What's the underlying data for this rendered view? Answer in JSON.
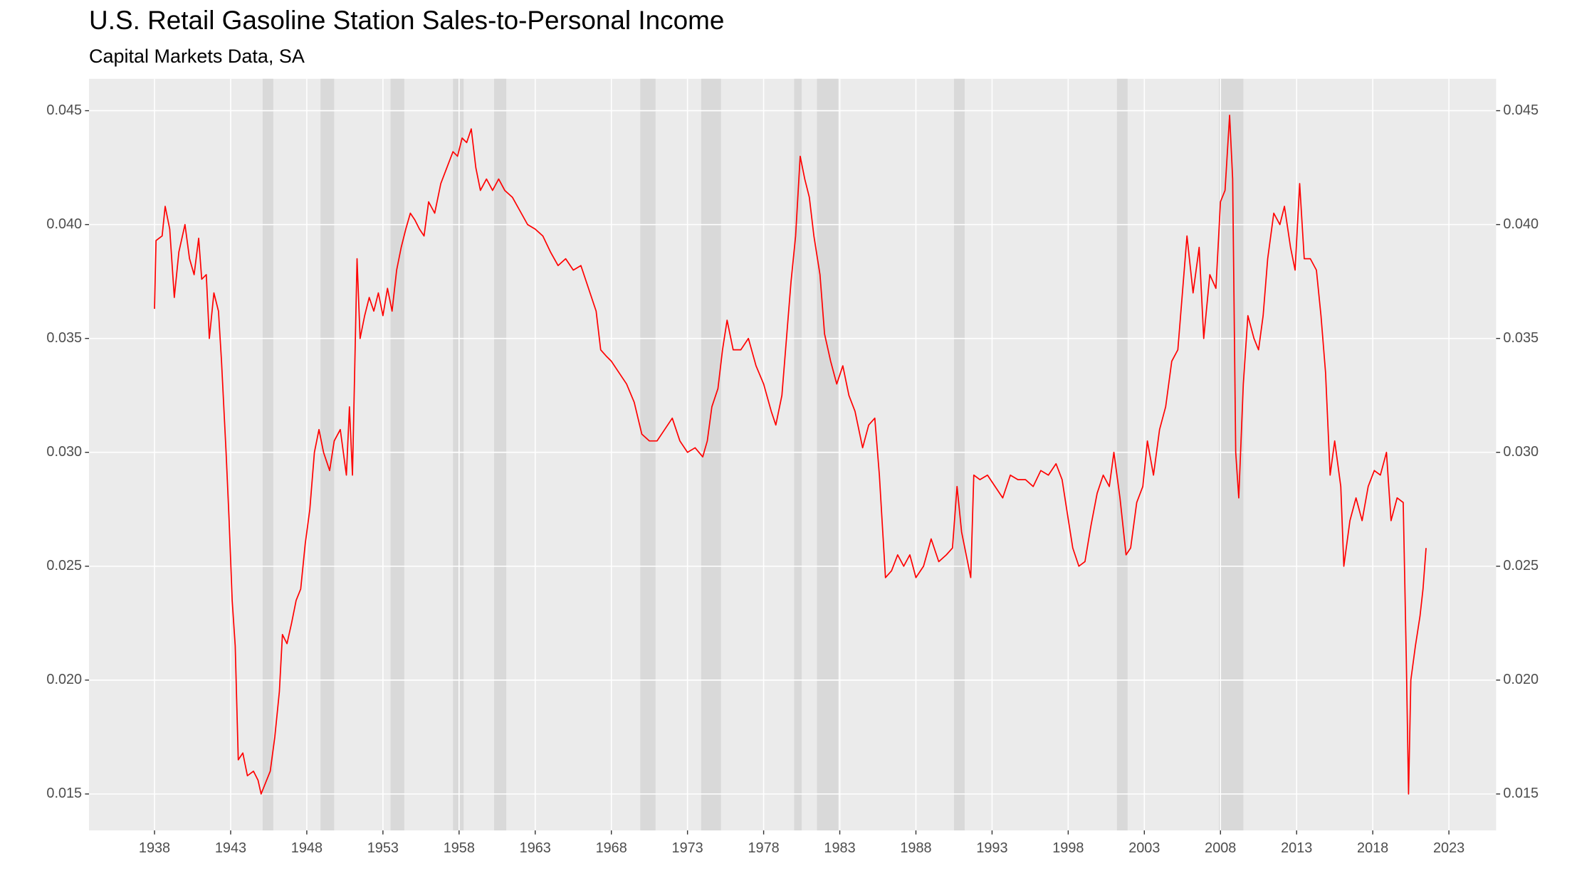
{
  "chart_data": {
    "type": "line",
    "title": "U.S. Retail Gasoline Station Sales-to-Personal Income",
    "subtitle": "Capital Markets Data, SA",
    "x": [
      1938.0,
      1938.1,
      1938.5,
      1938.7,
      1939.0,
      1939.3,
      1939.6,
      1940.0,
      1940.3,
      1940.6,
      1940.9,
      1941.1,
      1941.4,
      1941.6,
      1941.9,
      1942.2,
      1942.4,
      1942.7,
      1942.9,
      1943.1,
      1943.3,
      1943.5,
      1943.8,
      1944.1,
      1944.5,
      1944.8,
      1945.0,
      1945.3,
      1945.6,
      1945.9,
      1946.2,
      1946.4,
      1946.7,
      1947.0,
      1947.3,
      1947.6,
      1947.9,
      1948.2,
      1948.5,
      1948.8,
      1949.1,
      1949.5,
      1949.8,
      1950.2,
      1950.4,
      1950.6,
      1950.8,
      1951.0,
      1951.3,
      1951.5,
      1951.8,
      1952.1,
      1952.4,
      1952.7,
      1953.0,
      1953.3,
      1953.6,
      1953.9,
      1954.2,
      1954.5,
      1954.8,
      1955.1,
      1955.4,
      1955.7,
      1956.0,
      1956.4,
      1956.8,
      1957.2,
      1957.6,
      1957.9,
      1958.2,
      1958.5,
      1958.8,
      1959.1,
      1959.4,
      1959.8,
      1960.2,
      1960.6,
      1961.0,
      1961.5,
      1962.0,
      1962.5,
      1963.0,
      1963.5,
      1964.0,
      1964.5,
      1965.0,
      1965.5,
      1966.0,
      1966.5,
      1967.0,
      1967.3,
      1967.7,
      1968.0,
      1968.5,
      1969.0,
      1969.5,
      1970.0,
      1970.5,
      1971.0,
      1971.5,
      1972.0,
      1972.5,
      1973.0,
      1973.5,
      1974.0,
      1974.3,
      1974.6,
      1975.0,
      1975.3,
      1975.6,
      1976.0,
      1976.5,
      1977.0,
      1977.5,
      1978.0,
      1978.5,
      1978.8,
      1979.2,
      1979.5,
      1979.8,
      1980.1,
      1980.4,
      1980.7,
      1981.0,
      1981.3,
      1981.7,
      1982.0,
      1982.4,
      1982.8,
      1983.2,
      1983.6,
      1984.0,
      1984.5,
      1984.9,
      1985.3,
      1985.6,
      1986.0,
      1986.4,
      1986.8,
      1987.2,
      1987.6,
      1988.0,
      1988.5,
      1989.0,
      1989.5,
      1990.0,
      1990.4,
      1990.7,
      1991.0,
      1991.3,
      1991.6,
      1991.8,
      1992.2,
      1992.7,
      1993.2,
      1993.7,
      1994.2,
      1994.7,
      1995.2,
      1995.7,
      1996.2,
      1996.7,
      1997.2,
      1997.6,
      1997.9,
      1998.3,
      1998.7,
      1999.1,
      1999.5,
      1999.9,
      2000.3,
      2000.7,
      2001.0,
      2001.4,
      2001.8,
      2002.1,
      2002.5,
      2002.9,
      2003.2,
      2003.6,
      2004.0,
      2004.4,
      2004.8,
      2005.2,
      2005.5,
      2005.8,
      2006.2,
      2006.6,
      2006.9,
      2007.3,
      2007.7,
      2008.0,
      2008.3,
      2008.6,
      2008.8,
      2009.0,
      2009.2,
      2009.5,
      2009.8,
      2010.2,
      2010.5,
      2010.8,
      2011.1,
      2011.5,
      2011.9,
      2012.2,
      2012.6,
      2012.9,
      2013.2,
      2013.5,
      2013.9,
      2014.3,
      2014.6,
      2014.9,
      2015.2,
      2015.5,
      2015.9,
      2016.1,
      2016.5,
      2016.9,
      2017.3,
      2017.7,
      2018.1,
      2018.5,
      2018.9,
      2019.2,
      2019.6,
      2020.0,
      2020.2,
      2020.35,
      2020.5,
      2020.8,
      2021.1,
      2021.3,
      2021.5
    ],
    "series": [
      {
        "color": "#ff0000",
        "values": [
          0.0363,
          0.0393,
          0.0395,
          0.0408,
          0.0398,
          0.0368,
          0.0388,
          0.04,
          0.0385,
          0.0378,
          0.0394,
          0.0376,
          0.0378,
          0.035,
          0.037,
          0.0362,
          0.034,
          0.03,
          0.027,
          0.0235,
          0.0215,
          0.0165,
          0.0168,
          0.0158,
          0.016,
          0.0156,
          0.015,
          0.0155,
          0.016,
          0.0175,
          0.0195,
          0.022,
          0.0216,
          0.0225,
          0.0235,
          0.024,
          0.026,
          0.0275,
          0.03,
          0.031,
          0.03,
          0.0292,
          0.0305,
          0.031,
          0.03,
          0.029,
          0.032,
          0.029,
          0.0385,
          0.035,
          0.036,
          0.0368,
          0.0362,
          0.037,
          0.036,
          0.0372,
          0.0362,
          0.038,
          0.039,
          0.0398,
          0.0405,
          0.0402,
          0.0398,
          0.0395,
          0.041,
          0.0405,
          0.0418,
          0.0425,
          0.0432,
          0.043,
          0.0438,
          0.0436,
          0.0442,
          0.0425,
          0.0415,
          0.042,
          0.0415,
          0.042,
          0.0415,
          0.0412,
          0.0406,
          0.04,
          0.0398,
          0.0395,
          0.0388,
          0.0382,
          0.0385,
          0.038,
          0.0382,
          0.0372,
          0.0362,
          0.0345,
          0.0342,
          0.034,
          0.0335,
          0.033,
          0.0322,
          0.0308,
          0.0305,
          0.0305,
          0.031,
          0.0315,
          0.0305,
          0.03,
          0.0302,
          0.0298,
          0.0305,
          0.032,
          0.0328,
          0.0345,
          0.0358,
          0.0345,
          0.0345,
          0.035,
          0.0338,
          0.033,
          0.0318,
          0.0312,
          0.0325,
          0.035,
          0.0375,
          0.0395,
          0.043,
          0.042,
          0.0412,
          0.0395,
          0.0378,
          0.0352,
          0.034,
          0.033,
          0.0338,
          0.0325,
          0.0318,
          0.0302,
          0.0312,
          0.0315,
          0.029,
          0.0245,
          0.0248,
          0.0255,
          0.025,
          0.0255,
          0.0245,
          0.025,
          0.0262,
          0.0252,
          0.0255,
          0.0258,
          0.0285,
          0.0265,
          0.0255,
          0.0245,
          0.029,
          0.0288,
          0.029,
          0.0285,
          0.028,
          0.029,
          0.0288,
          0.0288,
          0.0285,
          0.0292,
          0.029,
          0.0295,
          0.0288,
          0.0275,
          0.0258,
          0.025,
          0.0252,
          0.0268,
          0.0282,
          0.029,
          0.0285,
          0.03,
          0.028,
          0.0255,
          0.0258,
          0.0278,
          0.0285,
          0.0305,
          0.029,
          0.031,
          0.032,
          0.034,
          0.0345,
          0.037,
          0.0395,
          0.037,
          0.039,
          0.035,
          0.0378,
          0.0372,
          0.041,
          0.0415,
          0.0448,
          0.042,
          0.03,
          0.028,
          0.033,
          0.036,
          0.035,
          0.0345,
          0.036,
          0.0385,
          0.0405,
          0.04,
          0.0408,
          0.039,
          0.038,
          0.0418,
          0.0385,
          0.0385,
          0.038,
          0.036,
          0.0335,
          0.029,
          0.0305,
          0.0285,
          0.025,
          0.027,
          0.028,
          0.027,
          0.0285,
          0.0292,
          0.029,
          0.03,
          0.027,
          0.028,
          0.0278,
          0.021,
          0.015,
          0.02,
          0.0215,
          0.0228,
          0.024,
          0.0258
        ]
      }
    ],
    "recessions": [
      [
        1945.1,
        1945.8
      ],
      [
        1948.9,
        1949.8
      ],
      [
        1953.5,
        1954.4
      ],
      [
        1957.6,
        1958.3
      ],
      [
        1960.3,
        1961.1
      ],
      [
        1969.9,
        1970.9
      ],
      [
        1973.9,
        1975.2
      ],
      [
        1980.0,
        1980.5
      ],
      [
        1981.5,
        1982.9
      ],
      [
        1990.5,
        1991.2
      ],
      [
        2001.2,
        2001.9
      ],
      [
        2007.9,
        2009.5
      ]
    ],
    "shade_color": "#d9d9d9",
    "xlim": [
      1933.7,
      2026.1
    ],
    "xticks": [
      1938,
      1943,
      1948,
      1953,
      1958,
      1963,
      1968,
      1973,
      1978,
      1983,
      1988,
      1993,
      1998,
      2003,
      2008,
      2013,
      2018,
      2023
    ],
    "ylim": [
      0.0134,
      0.0464
    ],
    "yticks": [
      0.015,
      {
        "value": 0.02,
        "label": "0.020"
      },
      0.025,
      {
        "value": 0.03,
        "label": "0.030"
      },
      0.035,
      {
        "value": 0.04,
        "label": "0.040"
      },
      0.045
    ],
    "y2lim": [
      0.0134,
      0.0464
    ],
    "y2ticks": [
      0.015,
      {
        "value": 0.02,
        "label": "0.020"
      },
      0.025,
      {
        "value": 0.03,
        "label": "0.030"
      },
      0.035,
      {
        "value": 0.04,
        "label": "0.040"
      },
      0.045
    ],
    "grid": true
  }
}
